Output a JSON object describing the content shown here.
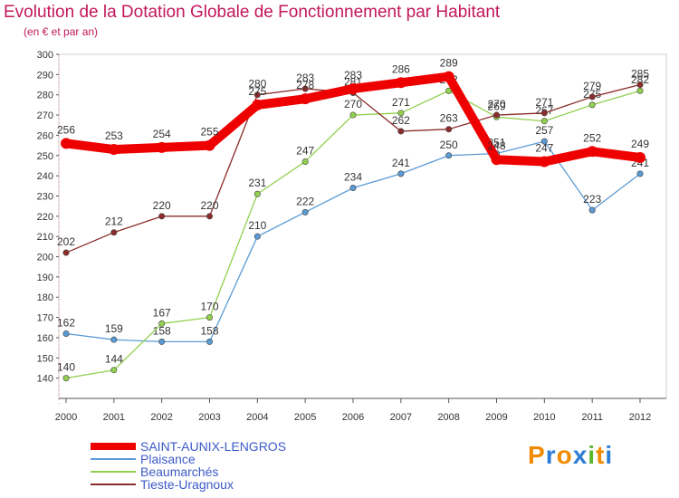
{
  "header": {
    "title": "Evolution de la Dotation Globale de Fonctionnement par Habitant",
    "subtitle": "(en € et par an)"
  },
  "logo": {
    "text": "Proxiti",
    "colors": [
      "#f08a00",
      "#2e7dd6",
      "#f08a00",
      "#2e7dd6",
      "#59b82e",
      "#f08a00",
      "#2e7dd6"
    ]
  },
  "chart_data": {
    "type": "line",
    "title": "Evolution de la Dotation Globale de Fonctionnement par Habitant",
    "subtitle": "(en € et par an)",
    "x": [
      "2000",
      "2001",
      "2002",
      "2003",
      "2004",
      "2005",
      "2006",
      "2007",
      "2008",
      "2009",
      "2010",
      "2011",
      "2012"
    ],
    "ylim": [
      130,
      300
    ],
    "yticks": [
      140,
      150,
      160,
      170,
      180,
      190,
      200,
      210,
      220,
      230,
      240,
      250,
      260,
      270,
      280,
      290,
      300
    ],
    "grid": false,
    "legend_position": "bottom-left",
    "series": [
      {
        "name": "SAINT-AUNIX-LENGROS",
        "color": "#ee0000",
        "thick": true,
        "values": [
          256,
          253,
          254,
          255,
          275,
          278,
          283,
          286,
          289,
          248,
          247,
          252,
          249
        ]
      },
      {
        "name": "Plaisance",
        "color": "#5b9bd5",
        "thick": false,
        "values": [
          162,
          159,
          158,
          158,
          210,
          222,
          234,
          241,
          250,
          251,
          257,
          223,
          241
        ]
      },
      {
        "name": "Beaumarchés",
        "color": "#92d050",
        "thick": false,
        "values": [
          140,
          144,
          167,
          170,
          231,
          247,
          270,
          271,
          282,
          269,
          267,
          275,
          282
        ]
      },
      {
        "name": "Tieste-Uragnoux",
        "color": "#8b2c2c",
        "thick": false,
        "values": [
          202,
          212,
          220,
          220,
          280,
          283,
          281,
          262,
          263,
          270,
          271,
          279,
          285
        ]
      }
    ]
  }
}
